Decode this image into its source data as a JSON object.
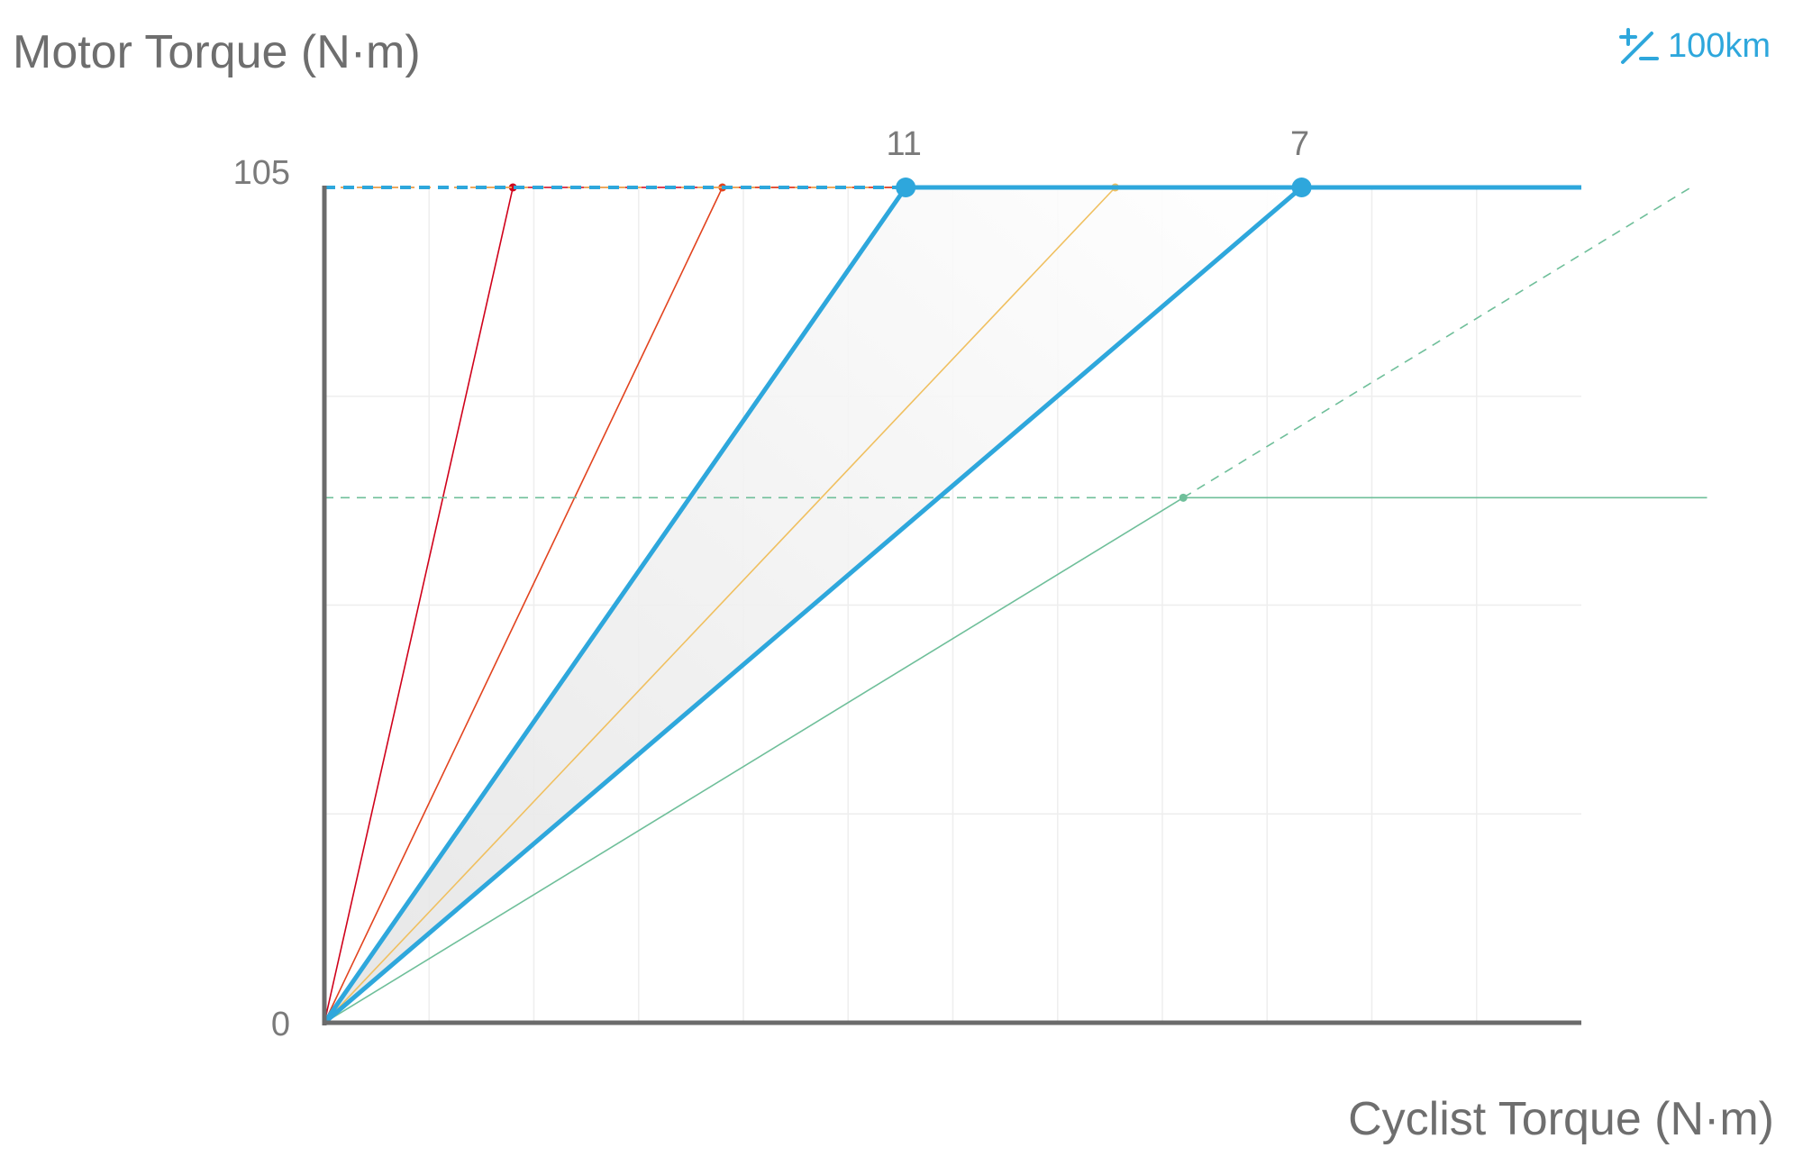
{
  "ylabel": "Motor Torque (N·m)",
  "xlabel": "Cyclist Torque (N·m)",
  "range_button": {
    "label": "100km",
    "icon": "plus-minus-icon"
  },
  "colors": {
    "accent": "#2ea7dc",
    "axis": "#6b6b6b",
    "grid": "#eeeeee",
    "red_dark": "#d0021b",
    "red": "#e2431e",
    "orange": "#f0c060",
    "green": "#6fbf9a"
  },
  "chart_data": {
    "type": "line",
    "ylabel": "Motor Torque (N·m)",
    "xlabel": "Cyclist Torque (N·m)",
    "ylim": [
      0,
      105
    ],
    "xlim": [
      0,
      12
    ],
    "grid": true,
    "y_ticks": [
      "0",
      "105"
    ],
    "point_labels": [
      "11",
      "7"
    ],
    "series": [
      {
        "kind": "limit",
        "values": [
          [
            0,
            0
          ],
          [
            1.8,
            105
          ],
          [
            12,
            105
          ]
        ]
      },
      {
        "kind": "limit",
        "values": [
          [
            0,
            0
          ],
          [
            3.8,
            105
          ],
          [
            12,
            105
          ]
        ]
      },
      {
        "kind": "main",
        "values": [
          [
            0,
            0
          ],
          [
            5.55,
            105
          ],
          [
            12,
            105
          ]
        ],
        "marker_label": "11"
      },
      {
        "kind": "limit",
        "values": [
          [
            0,
            0
          ],
          [
            7.55,
            105
          ]
        ]
      },
      {
        "kind": "main",
        "values": [
          [
            0,
            0
          ],
          [
            9.33,
            105
          ],
          [
            12,
            105
          ]
        ],
        "marker_label": "7"
      },
      {
        "kind": "limit",
        "values": [
          [
            0,
            0
          ],
          [
            8.2,
            66
          ],
          [
            13.2,
            66
          ]
        ]
      }
    ]
  }
}
